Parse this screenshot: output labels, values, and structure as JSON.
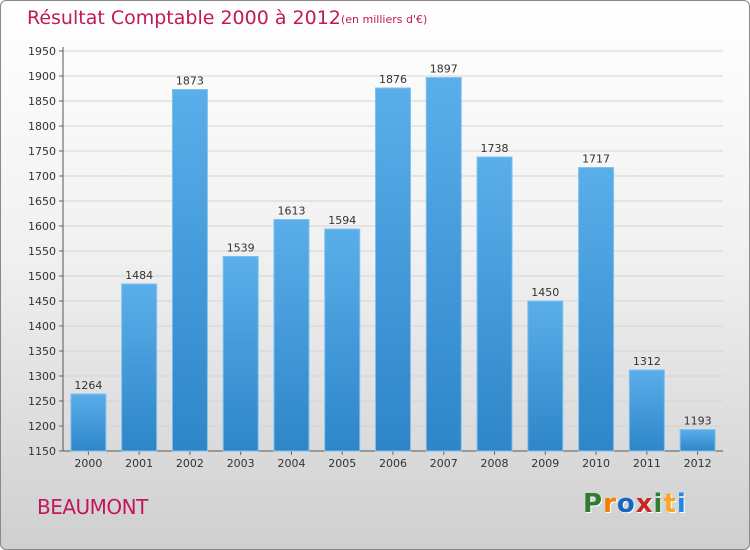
{
  "chart_data": {
    "type": "bar",
    "title": "Résultat Comptable 2000 à 2012",
    "subtitle": "(en milliers d'€)",
    "categories": [
      "2000",
      "2001",
      "2002",
      "2003",
      "2004",
      "2005",
      "2006",
      "2007",
      "2008",
      "2009",
      "2010",
      "2011",
      "2012"
    ],
    "values": [
      1264,
      1484,
      1873,
      1539,
      1613,
      1594,
      1876,
      1897,
      1738,
      1450,
      1717,
      1312,
      1193
    ],
    "xlabel": "",
    "ylabel": "",
    "ylim": [
      1150,
      1950
    ],
    "yticks": [
      1150,
      1200,
      1250,
      1300,
      1350,
      1400,
      1450,
      1500,
      1550,
      1600,
      1650,
      1700,
      1750,
      1800,
      1850,
      1900,
      1950
    ],
    "grid": true,
    "bar_color": "#3d9be0"
  },
  "footer": {
    "commune": "BEAUMONT",
    "brand": "Proxiti",
    "brand_colors": [
      "#2e7d32",
      "#f57c00",
      "#1565c0",
      "#c62828",
      "#2e7d32",
      "#f9a825",
      "#1e88e5"
    ]
  }
}
